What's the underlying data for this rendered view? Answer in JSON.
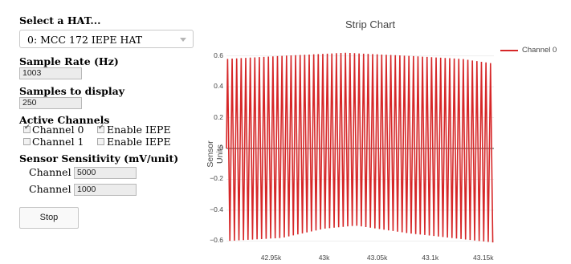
{
  "controls": {
    "hat_label": "Select a HAT...",
    "hat_selected": "0: MCC 172 IEPE HAT",
    "sample_rate_label": "Sample Rate (Hz)",
    "sample_rate_value": "1003",
    "samples_display_label": "Samples to display",
    "samples_display_value": "250",
    "active_channels_label": "Active Channels",
    "channels": [
      {
        "label": "Channel 0",
        "checked": true,
        "iepe_label": "Enable IEPE",
        "iepe_checked": true
      },
      {
        "label": "Channel 1",
        "checked": false,
        "iepe_label": "Enable IEPE",
        "iepe_checked": false
      }
    ],
    "sensitivity_label": "Sensor Sensitivity (mV/unit)",
    "sensitivity": [
      {
        "label": "Channel 0:",
        "value": "5000"
      },
      {
        "label": "Channel 1:",
        "value": "1000"
      }
    ],
    "stop_label": "Stop"
  },
  "chart_data": {
    "type": "line",
    "title": "Strip Chart",
    "ylabel": "Sensor Units",
    "xlabel": "",
    "ylim": [
      -0.65,
      0.65
    ],
    "xlim": [
      42908,
      43160
    ],
    "y_ticks": [
      0.6,
      0.4,
      0.2,
      0,
      -0.2,
      -0.4,
      -0.6
    ],
    "y_tick_labels": [
      "0.6",
      "0.4",
      "0.2",
      "0",
      "−0.2",
      "−0.4",
      "−0.6"
    ],
    "x_ticks": [
      42950,
      43000,
      43050,
      43100,
      43150
    ],
    "x_tick_labels": [
      "42.95k",
      "43k",
      "43.05k",
      "43.1k",
      "43.15k"
    ],
    "color": "#d62728",
    "series": [
      {
        "name": "Channel 0",
        "x_start": 42908,
        "x_end": 43160,
        "cycles": 59,
        "amplitude_envelope": [
          [
            42908,
            0.58
          ],
          [
            42960,
            0.6
          ],
          [
            43020,
            0.62
          ],
          [
            43080,
            0.6
          ],
          [
            43130,
            0.58
          ],
          [
            43160,
            0.55
          ]
        ],
        "trough_envelope": [
          [
            42908,
            -0.6
          ],
          [
            42960,
            -0.58
          ],
          [
            43000,
            -0.52
          ],
          [
            43030,
            -0.5
          ],
          [
            43080,
            -0.55
          ],
          [
            43160,
            -0.61
          ]
        ]
      }
    ]
  }
}
